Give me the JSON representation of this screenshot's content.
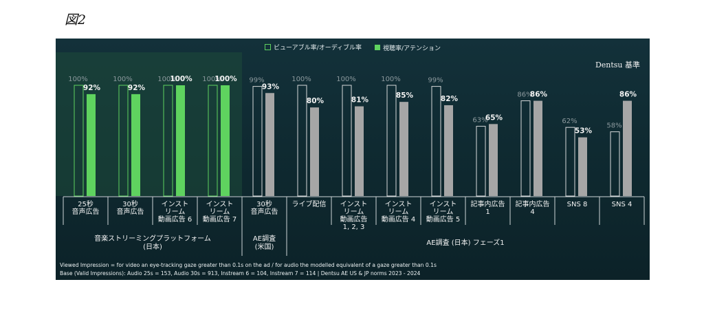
{
  "figure_label": "図2",
  "chart_data": {
    "type": "bar",
    "ylim": [
      0,
      100
    ],
    "legend": [
      {
        "name": "ビューアブル率/オーディブル率",
        "style": "outline",
        "color": "#5fd35f"
      },
      {
        "name": "視聴率/アテンション",
        "style": "fill",
        "color": "#5fd35f"
      }
    ],
    "categories": [
      "25秒\n音声広告",
      "30秒\n音声広告",
      "インスト\nリーム\n動画広告 6",
      "インスト\nリーム\n動画広告 7",
      "30秒\n音声広告",
      "ライブ配信",
      "インスト\nリーム\n動画広告\n1, 2, 3",
      "インスト\nリーム\n動画広告 4",
      "インスト\nリーム\n動画広告 5",
      "記事内広告\n1",
      "記事内広告\n4",
      "SNS 8",
      "SNS 4"
    ],
    "series": [
      {
        "name": "ビューアブル率/オーディブル率",
        "values": [
          100,
          100,
          100,
          100,
          99,
          100,
          100,
          100,
          99,
          63,
          86,
          62,
          58
        ]
      },
      {
        "name": "視聴率/アテンション",
        "values": [
          92,
          92,
          100,
          100,
          93,
          80,
          81,
          85,
          82,
          65,
          86,
          53,
          86
        ]
      }
    ],
    "groups": [
      {
        "label": "音楽ストリーミングプラットフォーム\n(日本)",
        "start": 0,
        "end": 3
      },
      {
        "label": "AE調査\n(米国)",
        "start": 4,
        "end": 4
      },
      {
        "label": "AE調査 (日本) フェーズ1",
        "start": 5,
        "end": 12
      }
    ],
    "annotation": "Dentsu 基準",
    "footnotes": [
      "Viewed Impression = for video an eye-tracking gaze greater than 0.1s on the ad / for audio the modelled equivalent of a gaze greater than 0.1s",
      "Base (Valid Impressions): Audio 25s = 153, Audio 30s = 913, Instream 6 = 104, Instream 7 = 114 | Dentsu AE US & JP norms 2023 - 2024"
    ],
    "colors": {
      "highlight_fill": "#5fd35f",
      "highlight_outline": "#5fd35f",
      "muted_fill": "#a6a6a6",
      "muted_outline": "#d8dadb",
      "highlight_bg": "#1d4a3a"
    }
  }
}
